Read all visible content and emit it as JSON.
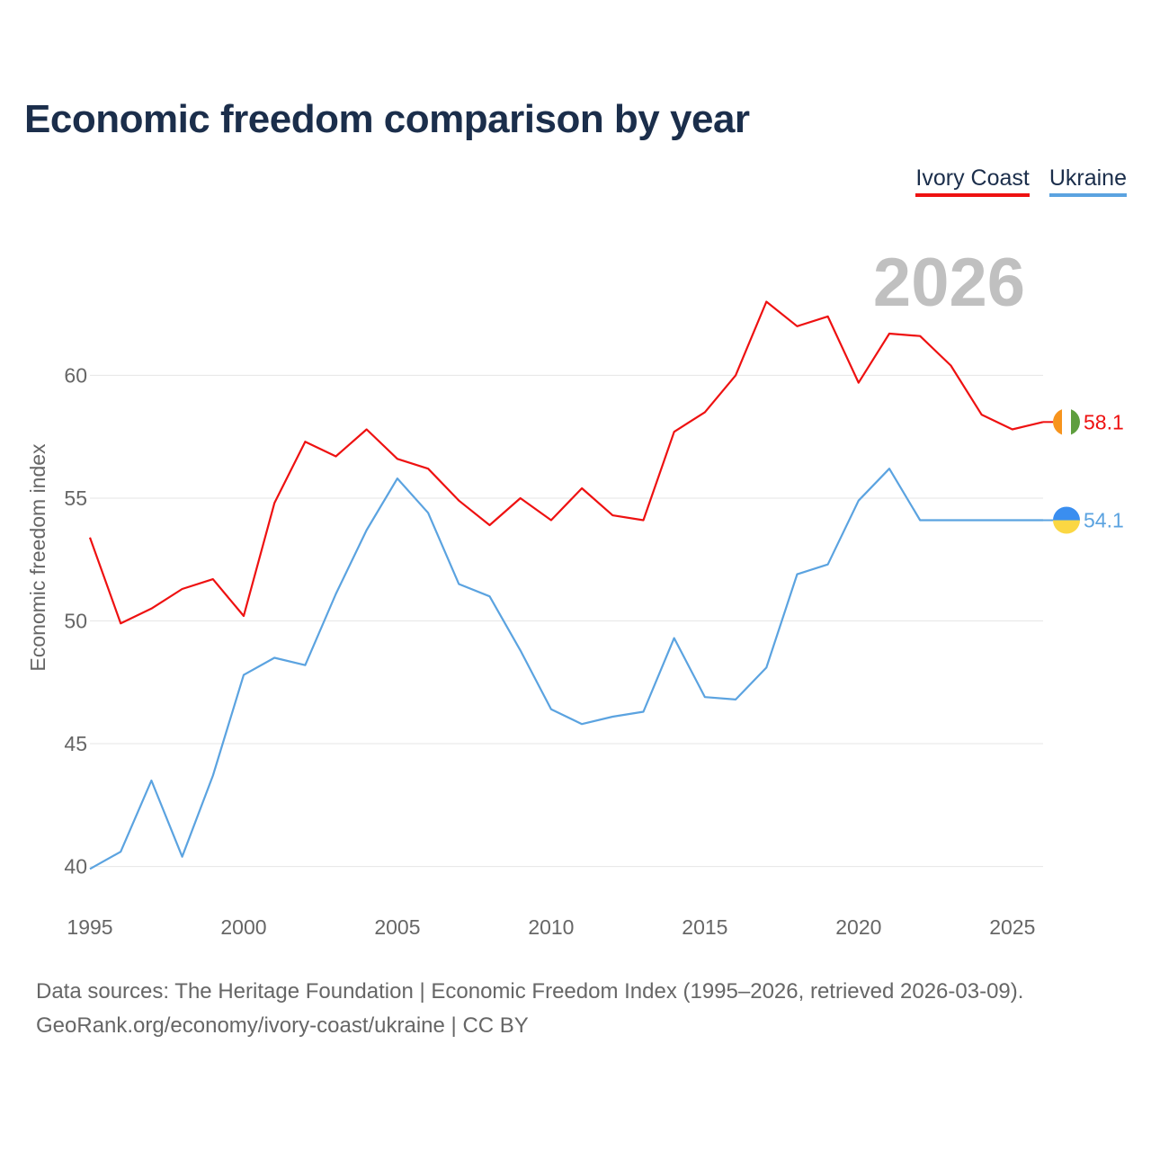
{
  "chart_data": {
    "type": "line",
    "title": "Economic freedom comparison by year",
    "year_label": "2026",
    "ylabel": "Economic freedom index",
    "xlabel": "",
    "xlim": [
      1995,
      2026
    ],
    "ylim": [
      38.3,
      64.3
    ],
    "xticks": [
      1995,
      2000,
      2005,
      2010,
      2015,
      2020,
      2025
    ],
    "yticks": [
      40,
      45,
      50,
      55,
      60
    ],
    "x": [
      1995,
      1996,
      1997,
      1998,
      1999,
      2000,
      2001,
      2002,
      2003,
      2004,
      2005,
      2006,
      2007,
      2008,
      2009,
      2010,
      2011,
      2012,
      2013,
      2014,
      2015,
      2016,
      2017,
      2018,
      2019,
      2020,
      2021,
      2022,
      2023,
      2024,
      2025,
      2026
    ],
    "series": [
      {
        "name": "Ivory Coast",
        "color": "#ee1111",
        "end_label": "58.1",
        "flag_colors": [
          "#f7941d",
          "#ffffff",
          "#5e9e3e"
        ],
        "values": [
          53.4,
          49.9,
          50.5,
          51.3,
          51.7,
          50.2,
          54.8,
          57.3,
          56.7,
          57.8,
          56.6,
          56.2,
          54.9,
          53.9,
          55.0,
          54.1,
          55.4,
          54.3,
          54.1,
          57.7,
          58.5,
          60.0,
          63.0,
          62.0,
          62.4,
          59.7,
          61.7,
          61.6,
          60.4,
          58.4,
          57.8,
          58.1
        ]
      },
      {
        "name": "Ukraine",
        "color": "#5ba3e0",
        "end_label": "54.1",
        "flag_colors": [
          "#3a8ef0",
          "#fbd743"
        ],
        "values": [
          39.9,
          40.6,
          43.5,
          40.4,
          43.7,
          47.8,
          48.5,
          48.2,
          51.1,
          53.7,
          55.8,
          54.4,
          51.5,
          51.0,
          48.8,
          46.4,
          45.8,
          46.1,
          46.3,
          49.3,
          46.9,
          46.8,
          48.1,
          51.9,
          52.3,
          54.9,
          56.2,
          54.1,
          54.1,
          54.1,
          54.1,
          54.1
        ]
      }
    ]
  },
  "footer": {
    "line1": "Data sources: The Heritage Foundation | Economic Freedom Index (1995–2026, retrieved 2026-03-09).",
    "line2": "GeoRank.org/economy/ivory-coast/ukraine | CC BY"
  }
}
